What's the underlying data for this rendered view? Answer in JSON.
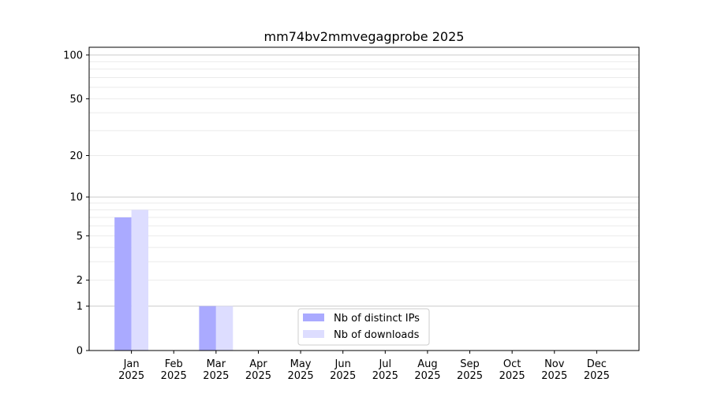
{
  "chart_data": {
    "type": "bar",
    "title": "mm74bv2mmvegagprobe 2025",
    "xlabel": "",
    "ylabel": "",
    "yscale": "log(1+y)",
    "ylim": [
      0,
      113
    ],
    "yticks": [
      0,
      1,
      2,
      5,
      10,
      20,
      50,
      100
    ],
    "grid": true,
    "legend_position": "bottom-center",
    "categories": [
      "Jan\n2025",
      "Feb\n2025",
      "Mar\n2025",
      "Apr\n2025",
      "May\n2025",
      "Jun\n2025",
      "Jul\n2025",
      "Aug\n2025",
      "Sep\n2025",
      "Oct\n2025",
      "Nov\n2025",
      "Dec\n2025"
    ],
    "series": [
      {
        "name": "Nb of distinct IPs",
        "color": "#aaaaff",
        "values": [
          7,
          0,
          1,
          0,
          0,
          0,
          0,
          0,
          0,
          0,
          0,
          0
        ]
      },
      {
        "name": "Nb of downloads",
        "color": "#ddddff",
        "values": [
          8,
          0,
          1,
          0,
          0,
          0,
          0,
          0,
          0,
          0,
          0,
          0
        ]
      }
    ]
  }
}
